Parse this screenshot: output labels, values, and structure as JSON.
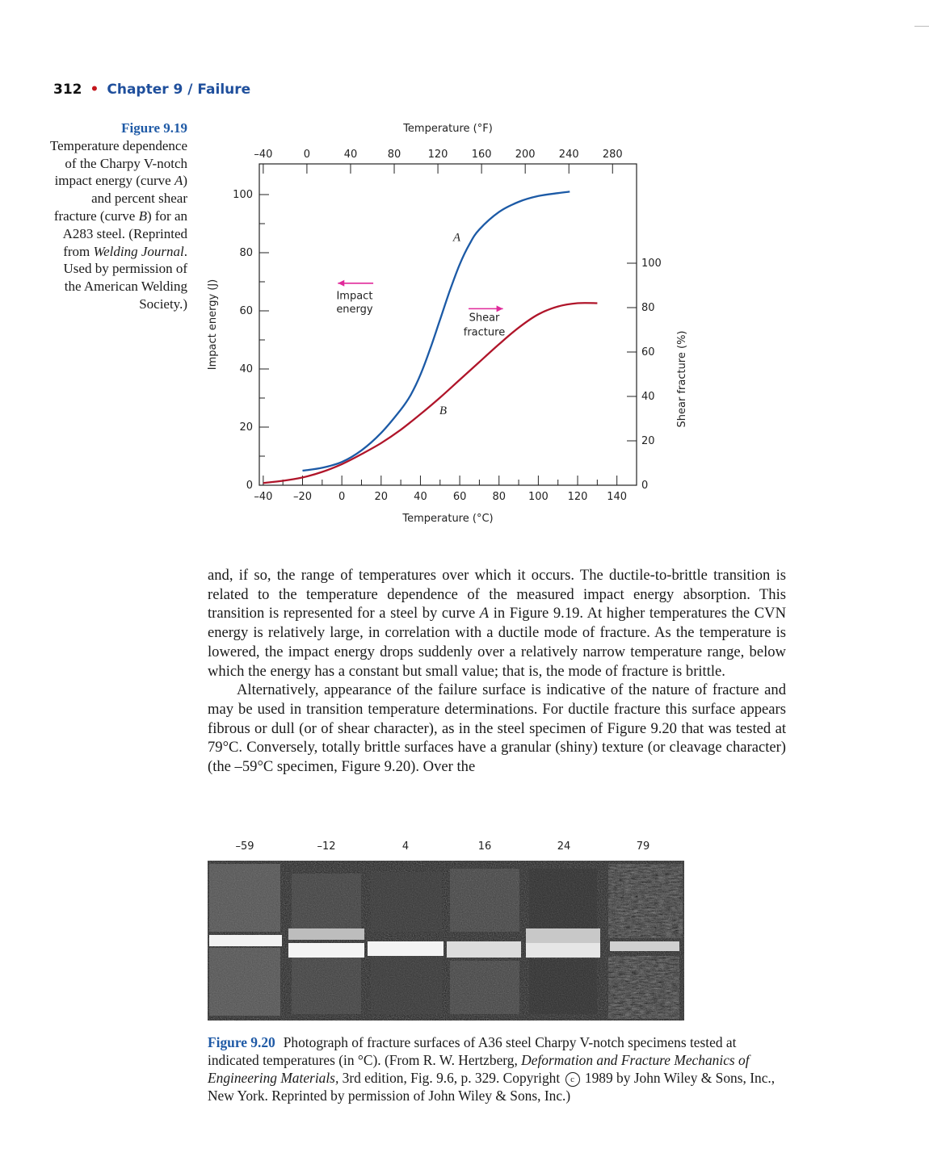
{
  "running_head": {
    "page_number": "312",
    "separator": "•",
    "chapter": "Chapter 9  /  Failure"
  },
  "figure_919": {
    "label": "Figure 9.19",
    "caption_runs": [
      {
        "text": "Temperature dependence of the Charpy V-notch impact energy (curve ",
        "style": "normal"
      },
      {
        "text": "A",
        "style": "italic"
      },
      {
        "text": ") and percent shear fracture (curve ",
        "style": "normal"
      },
      {
        "text": "B",
        "style": "italic"
      },
      {
        "text": ") for an A283 steel. (Reprinted from ",
        "style": "normal"
      },
      {
        "text": "Welding Journal",
        "style": "italic"
      },
      {
        "text": ". Used by permission of the American Welding Society.)",
        "style": "normal"
      }
    ]
  },
  "chart_data": {
    "type": "line",
    "title": "",
    "xlabel": "Temperature (°C)",
    "xlabel_top": "Temperature (°F)",
    "ylabel": "Impact energy (J)",
    "ylabel_right": "Shear fracture (%)",
    "xlim": [
      -42,
      150
    ],
    "ylim": [
      0,
      100
    ],
    "ylim_right": [
      0,
      100
    ],
    "x_ticks": [
      -40,
      -20,
      0,
      20,
      40,
      60,
      80,
      100,
      120,
      140
    ],
    "x_tick_labels": [
      "–40",
      "–20",
      "0",
      "20",
      "40",
      "60",
      "80",
      "100",
      "120",
      "140"
    ],
    "x_top_ticks": [
      -40,
      0,
      40,
      80,
      120,
      160,
      200,
      240,
      280
    ],
    "x_top_tick_labels": [
      "–40",
      "0",
      "40",
      "80",
      "120",
      "160",
      "200",
      "240",
      "280"
    ],
    "y_ticks": [
      0,
      20,
      40,
      60,
      80,
      100
    ],
    "y_right_ticks": [
      0,
      20,
      40,
      60,
      80,
      100
    ],
    "series": [
      {
        "name": "A",
        "axis": "left",
        "color": "#1c5aa6",
        "x": [
          -20,
          -10,
          0,
          10,
          20,
          30,
          35,
          40,
          45,
          50,
          55,
          60,
          65,
          70,
          80,
          90,
          100,
          110,
          116
        ],
        "y": [
          5,
          6,
          8,
          12,
          18,
          26,
          31,
          38,
          47,
          57,
          67,
          76,
          83,
          88,
          94,
          97.5,
          99.5,
          100.5,
          101
        ]
      },
      {
        "name": "B",
        "axis": "right",
        "color": "#b0152a",
        "x": [
          -40,
          -30,
          -20,
          -10,
          0,
          10,
          20,
          30,
          40,
          50,
          60,
          70,
          80,
          90,
          100,
          110,
          120,
          130
        ],
        "y": [
          1,
          2,
          3.5,
          6,
          9.5,
          14,
          19,
          25,
          32,
          39.5,
          47.5,
          55.5,
          63.5,
          71,
          77,
          80.5,
          82,
          82
        ]
      }
    ],
    "annotations": [
      {
        "text": "A",
        "style": "italic",
        "near_series": "A"
      },
      {
        "text": "B",
        "style": "italic",
        "near_series": "B"
      },
      {
        "lines": [
          "Impact",
          "energy"
        ],
        "arrow": "left",
        "arrow_color": "#e0299a"
      },
      {
        "lines": [
          "Shear",
          "fracture"
        ],
        "arrow": "right",
        "arrow_color": "#e0299a"
      }
    ],
    "grid": false,
    "legend": "none"
  },
  "body": {
    "paragraphs": [
      {
        "indent": false,
        "runs": [
          {
            "text": "and, if so, the range of temperatures over which it occurs. The ductile-to-brittle transition is related to the temperature dependence of the measured impact energy absorption. This transition is represented for a steel by curve ",
            "style": "normal"
          },
          {
            "text": "A",
            "style": "italic"
          },
          {
            "text": " in Figure 9.19. At higher temperatures the CVN energy is relatively large, in correlation with a ductile mode of fracture. As the temperature is lowered, the impact energy drops suddenly over a relatively narrow temperature range, below which the energy has a constant but small value; that is, the mode of fracture is brittle.",
            "style": "normal"
          }
        ]
      },
      {
        "indent": true,
        "runs": [
          {
            "text": "Alternatively, appearance of the failure surface is indicative of the nature of fracture and may be used in transition temperature determinations. For ductile fracture this surface appears fibrous or dull (or of shear character), as in the steel specimen of Figure 9.20 that was tested at 79°C. Conversely, totally brittle surfaces have a granular (shiny) texture (or cleavage character) (the –59°C specimen, Figure 9.20). Over the",
            "style": "normal"
          }
        ]
      }
    ]
  },
  "figure_920": {
    "temperature_labels": [
      "–59",
      "–12",
      "4",
      "16",
      "24",
      "79"
    ],
    "label": "Figure 9.20",
    "caption_part1": "Photograph of fracture surfaces of A36 steel Charpy V-notch specimens tested at indicated temperatures (in °C). (From R. W. Hertzberg, ",
    "caption_italic": "Deformation and Fracture Mechanics of Engineering Materials,",
    "caption_part2": " 3rd edition, Fig. 9.6, p. 329. Copyright ",
    "copyright_symbol": "c",
    "caption_part3": " 1989 by John Wiley & Sons, Inc., New York. Reprinted by permission of John Wiley & Sons, Inc.)"
  }
}
